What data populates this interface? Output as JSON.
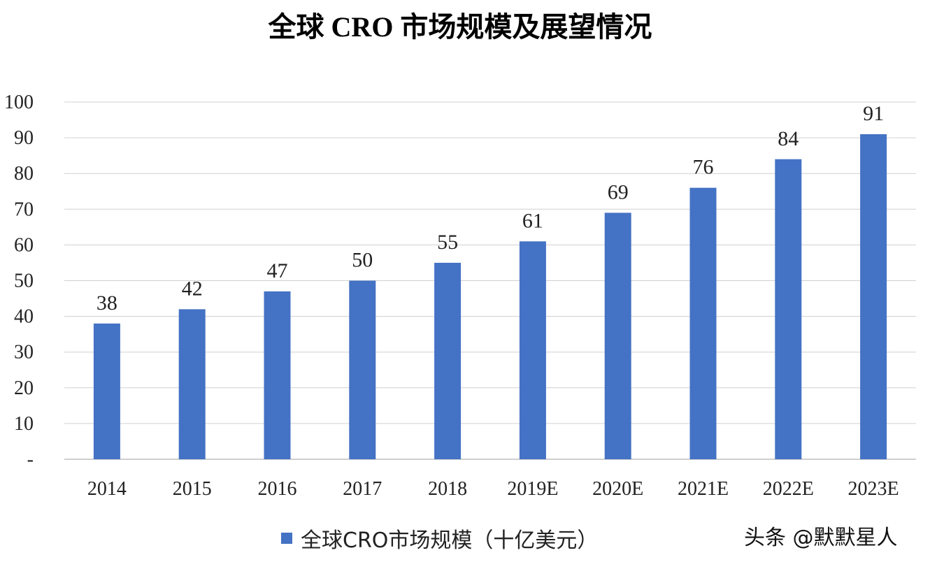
{
  "chart_data": {
    "type": "bar",
    "title": "全球 CRO 市场规模及展望情况",
    "categories": [
      "2014",
      "2015",
      "2016",
      "2017",
      "2018",
      "2019E",
      "2020E",
      "2021E",
      "2022E",
      "2023E"
    ],
    "series": [
      {
        "name": "全球CRO市场规模（十亿美元）",
        "values": [
          38,
          42,
          47,
          50,
          55,
          61,
          69,
          76,
          84,
          91
        ],
        "color": "#4472c4"
      }
    ],
    "xlabel": "",
    "ylabel": "",
    "ylim": [
      0,
      100
    ],
    "yticks": [
      "-",
      "10",
      "20",
      "30",
      "40",
      "50",
      "60",
      "70",
      "80",
      "90",
      "100"
    ],
    "grid": true,
    "legend_position": "bottom",
    "data_labels": true
  },
  "watermark": "头条 @默默星人"
}
